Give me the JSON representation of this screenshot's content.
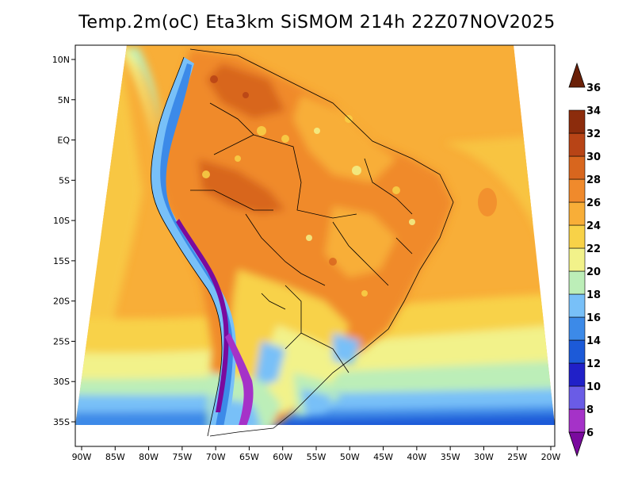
{
  "title": "Temp.2m(oC) Eta3km SiSMOM 214h 22Z07NOV2025",
  "x_ticks": [
    "90W",
    "85W",
    "80W",
    "75W",
    "70W",
    "65W",
    "60W",
    "55W",
    "50W",
    "45W",
    "40W",
    "35W",
    "30W",
    "25W",
    "20W"
  ],
  "y_ticks": [
    "10N",
    "5N",
    "EQ",
    "5S",
    "10S",
    "15S",
    "20S",
    "25S",
    "30S",
    "35S"
  ],
  "colorbar": {
    "labels": [
      "6",
      "8",
      "10",
      "12",
      "14",
      "16",
      "18",
      "20",
      "22",
      "24",
      "26",
      "28",
      "30",
      "32",
      "34",
      "36"
    ],
    "colors": [
      "#7a0a9e",
      "#a532c8",
      "#6a5ce6",
      "#2020c8",
      "#1c5ad8",
      "#3c8ae8",
      "#78c0f8",
      "#bceeb8",
      "#f2f28a",
      "#f8d248",
      "#f8ae38",
      "#f08a2c",
      "#d8661e",
      "#b84416",
      "#8c2c0c",
      "#6a2008"
    ]
  },
  "chart_data": {
    "type": "heatmap",
    "title": "Temp.2m(oC) Eta3km SiSMOM 214h 22Z07NOV2025",
    "variable": "Temp.2m",
    "units": "oC",
    "model": "Eta3km SiSMOM",
    "forecast_hour": "214h",
    "valid_time": "22Z07NOV2025",
    "lon_range": [
      -90,
      -20
    ],
    "lat_range": [
      -37,
      11
    ],
    "colorbar_range": [
      6,
      36
    ],
    "colorbar_step": 2
  }
}
